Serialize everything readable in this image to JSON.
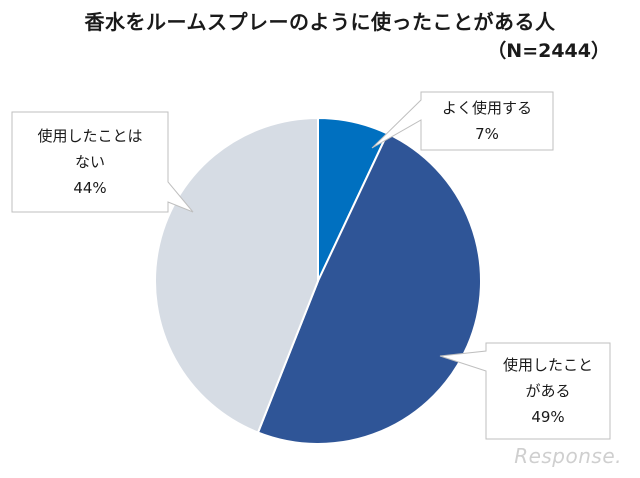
{
  "title": "香水をルームスプレーのように使ったことがある人",
  "subtitle": "（N=2444）",
  "watermark": "Response.",
  "chart_data": {
    "type": "pie",
    "title": "香水をルームスプレーのように使ったことがある人",
    "subtitle": "（N=2444）",
    "slices": [
      {
        "label_lines": [
          "よく使用する"
        ],
        "value": 7,
        "value_label": "7%",
        "color": "#0070c0"
      },
      {
        "label_lines": [
          "使用したこと",
          "がある"
        ],
        "value": 49,
        "value_label": "49%",
        "color": "#2f5597"
      },
      {
        "label_lines": [
          "使用したことは",
          "ない"
        ],
        "value": 44,
        "value_label": "44%",
        "color": "#d6dce4"
      }
    ],
    "start_angle": "12 o'clock",
    "direction": "clockwise",
    "legend": "none",
    "labels": "callouts"
  }
}
